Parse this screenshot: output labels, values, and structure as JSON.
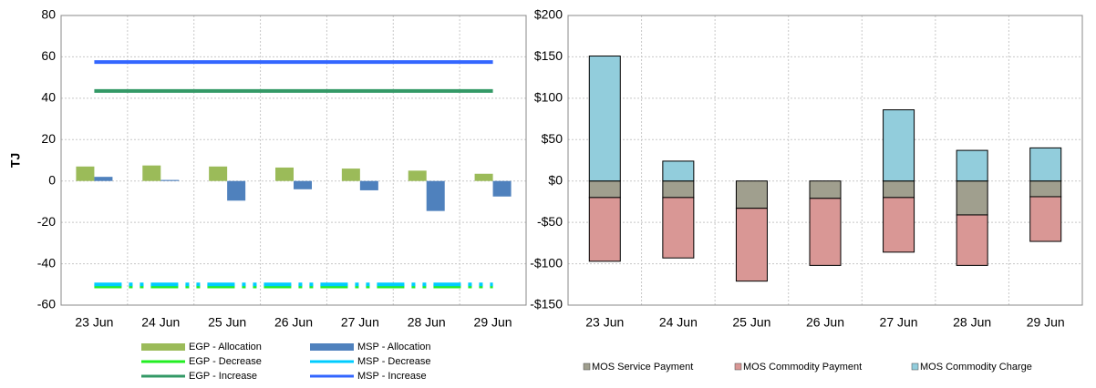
{
  "chart_data": [
    {
      "type": "combo",
      "y_label": "TJ",
      "categories": [
        "23 Jun",
        "24 Jun",
        "25 Jun",
        "26 Jun",
        "27 Jun",
        "28 Jun",
        "29 Jun"
      ],
      "ylim": [
        -60,
        80
      ],
      "yticks": [
        -60,
        -40,
        -20,
        0,
        20,
        40,
        60,
        80
      ],
      "grid": true,
      "series": [
        {
          "name": "EGP - Allocation",
          "type": "bar",
          "color": "#9bbb59",
          "values": [
            7,
            7.5,
            7,
            6.5,
            6,
            5,
            3.5
          ]
        },
        {
          "name": "MSP - Allocation",
          "type": "bar",
          "color": "#4f81bd",
          "values": [
            2,
            0.5,
            -9.5,
            -4,
            -4.5,
            -14.5,
            -7.5
          ]
        },
        {
          "name": "EGP - Decrease",
          "type": "line",
          "dash": true,
          "color": "#22ee22",
          "values": [
            -51,
            -51,
            -51,
            -51,
            -51,
            -51,
            -51
          ]
        },
        {
          "name": "MSP - Decrease",
          "type": "line",
          "dash": true,
          "color": "#00ccff",
          "values": [
            -50,
            -50,
            -50,
            -50,
            -50,
            -50,
            -50
          ]
        },
        {
          "name": "EGP - Increase",
          "type": "line",
          "dash": false,
          "color": "#339966",
          "values": [
            43.5,
            43.5,
            43.5,
            43.5,
            43.5,
            43.5,
            43.5
          ]
        },
        {
          "name": "MSP - Increase",
          "type": "line",
          "dash": false,
          "color": "#3366ff",
          "values": [
            57.5,
            57.5,
            57.5,
            57.5,
            57.5,
            57.5,
            57.5
          ]
        }
      ]
    },
    {
      "type": "stacked_bar",
      "categories": [
        "23 Jun",
        "24 Jun",
        "25 Jun",
        "26 Jun",
        "27 Jun",
        "28 Jun",
        "29 Jun"
      ],
      "ylim": [
        -150,
        200
      ],
      "yticks": [
        {
          "value": -150,
          "label": "-$150"
        },
        {
          "value": -100,
          "label": "-$100"
        },
        {
          "value": -50,
          "label": "-$50"
        },
        {
          "value": 0,
          "label": "$0"
        },
        {
          "value": 50,
          "label": "$50"
        },
        {
          "value": 100,
          "label": "$100"
        },
        {
          "value": 150,
          "label": "$150"
        },
        {
          "value": 200,
          "label": "$200"
        }
      ],
      "grid": true,
      "series": [
        {
          "name": "MOS Service Payment",
          "color": "#a09f8e",
          "values": [
            -20,
            -20,
            -33,
            -21,
            -20,
            -41,
            -19
          ]
        },
        {
          "name": "MOS Commodity Payment",
          "color": "#d99795",
          "values": [
            -77,
            -73,
            -88,
            -81,
            -66,
            -61,
            -54
          ]
        },
        {
          "name": "MOS Commodity Charge",
          "color": "#92cddc",
          "values": [
            151,
            24,
            0,
            0,
            86,
            37,
            40
          ]
        }
      ]
    }
  ]
}
